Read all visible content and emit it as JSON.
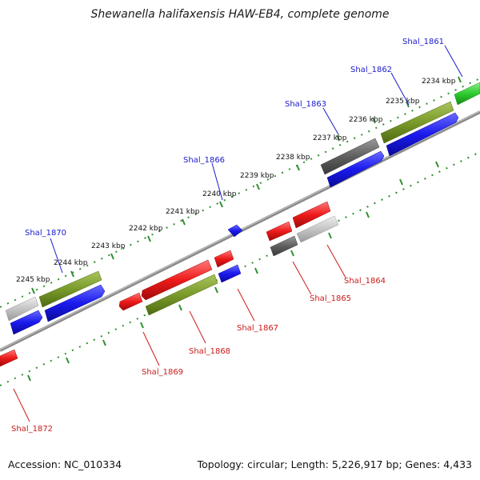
{
  "title": "Shewanella halifaxensis HAW-EB4, complete genome",
  "accession": "Accession: NC_010334",
  "topology": "Topology: circular; Length: 5,226,917 bp; Genes: 4,433",
  "kbp_labels": [
    "2234 kbp",
    "2235 kbp",
    "2236 kbp",
    "2237 kbp",
    "2238 kbp",
    "2239 kbp",
    "2240 kbp",
    "2241 kbp",
    "2242 kbp",
    "2243 kbp",
    "2244 kbp",
    "2245 kbp"
  ],
  "genes_forward": [
    "Shal_1861",
    "Shal_1862",
    "Shal_1863",
    "Shal_1866",
    "Shal_1870"
  ],
  "genes_reverse": [
    "Shal_1864",
    "Shal_1865",
    "Shal_1867",
    "Shal_1868",
    "Shal_1869",
    "Shal_1872"
  ],
  "colors": {
    "forward_cds": "#1a1aee",
    "reverse_cds": "#ee1a1a",
    "olive_feature": "#7a9a2a",
    "dark_gray_feature": "#5f5f5f",
    "light_gray_feature": "#c4c4c4",
    "green_feature": "#2ecc2e",
    "backbone": "#8a8a8a",
    "ticks": "#2f8f2f"
  }
}
